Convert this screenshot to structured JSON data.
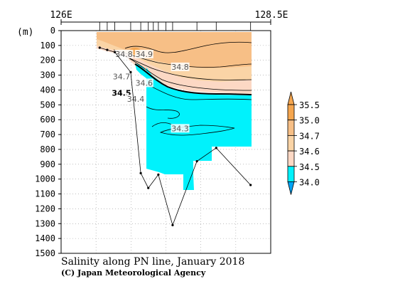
{
  "chart_data": {
    "type": "heatmap",
    "title": "Salinity along PN line, January 2018",
    "credit": "(C) Japan Meteorological Agency",
    "x_axis": {
      "tick_labels": [
        "126E",
        "128.5E"
      ],
      "range": [
        "126E",
        "128.5E"
      ]
    },
    "y_axis": {
      "unit_label": "(m)",
      "range": [
        0,
        1500
      ],
      "ticks": [
        0,
        100,
        200,
        300,
        400,
        500,
        600,
        700,
        800,
        900,
        1000,
        1100,
        1200,
        1300,
        1400,
        1500
      ],
      "reversed": true
    },
    "grid": true,
    "contour_labels": [
      {
        "text": "34.8",
        "lon": 126.75,
        "depth": 158
      },
      {
        "text": "34.9",
        "lon": 126.99,
        "depth": 158
      },
      {
        "text": "34.8",
        "lon": 127.42,
        "depth": 244
      },
      {
        "text": "34.7",
        "lon": 126.72,
        "depth": 310
      },
      {
        "text": "34.6",
        "lon": 126.99,
        "depth": 352
      },
      {
        "text": "34.5",
        "lon": 126.72,
        "depth": 420,
        "bold": true
      },
      {
        "text": "34.4",
        "lon": 126.89,
        "depth": 460
      },
      {
        "text": "34.3",
        "lon": 127.42,
        "depth": 658
      }
    ],
    "colorbar": {
      "levels": [
        "35.5",
        "35.0",
        "34.7",
        "34.6",
        "34.5",
        "34.0"
      ],
      "colors": [
        "#f5a64f",
        "#f7bf86",
        "#fad4a6",
        "#fcd8c4",
        "#00f2fc",
        "#00a3f5"
      ]
    },
    "bottom_profile": [
      {
        "lon": 126.46,
        "depth": 115
      },
      {
        "lon": 126.55,
        "depth": 130
      },
      {
        "lon": 126.64,
        "depth": 145
      },
      {
        "lon": 126.83,
        "depth": 280
      },
      {
        "lon": 126.95,
        "depth": 960
      },
      {
        "lon": 127.04,
        "depth": 1060
      },
      {
        "lon": 127.16,
        "depth": 970
      },
      {
        "lon": 127.33,
        "depth": 1310
      },
      {
        "lon": 127.62,
        "depth": 880
      },
      {
        "lon": 127.85,
        "depth": 790
      },
      {
        "lon": 128.26,
        "depth": 1040
      }
    ]
  }
}
